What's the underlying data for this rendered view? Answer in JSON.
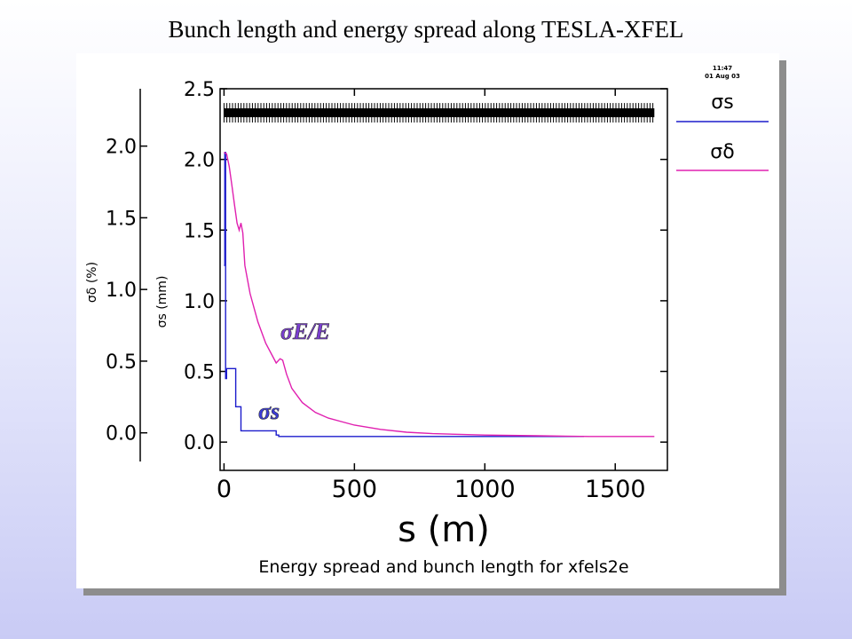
{
  "slide": {
    "title": "Bunch length and energy spread along TESLA-XFEL"
  },
  "plot": {
    "caption": "Energy spread and bunch length for xfels2e",
    "timestamp_time": "11:47",
    "timestamp_date": "01 Aug 03",
    "annotation_energy": "σE/E",
    "annotation_length": "σs"
  },
  "chart_data": {
    "type": "line",
    "title": "Energy spread and bunch length for xfels2e",
    "xlabel": "s (m)",
    "ylabel_left": "σδ (%)",
    "ylabel_right": "σs (mm)",
    "xlim": [
      -15,
      1700
    ],
    "ylim_sigma_s": [
      -0.2,
      2.5
    ],
    "ylim_sigma_delta": [
      -0.2,
      2.4
    ],
    "x_ticks": [
      0,
      500,
      1000,
      1500
    ],
    "x_tick_labels": [
      "0",
      "500",
      "1000",
      "1500"
    ],
    "y_ticks_sigma_s": [
      0.0,
      0.5,
      1.0,
      1.5,
      2.0,
      2.5
    ],
    "y_tick_labels_sigma_s": [
      "0.0",
      "0.5",
      "1.0",
      "1.5",
      "2.0",
      "2.5"
    ],
    "y_ticks_sigma_delta": [
      0.0,
      0.5,
      1.0,
      1.5,
      2.0
    ],
    "y_tick_labels_sigma_delta": [
      "0.0",
      "0.5",
      "1.0",
      "1.5",
      "2.0"
    ],
    "legend_position": "right",
    "lattice_band": {
      "y": 2.33,
      "x_start": 0,
      "x_end": 1650
    },
    "series": [
      {
        "name": "σs",
        "axis": "sigma_s",
        "color": "#1c1ccc",
        "x": [
          0,
          3,
          3,
          6,
          6,
          10,
          10,
          45,
          45,
          65,
          65,
          200,
          200,
          210,
          210,
          500,
          500,
          1380
        ],
        "y": [
          1.25,
          1.25,
          2.05,
          2.05,
          0.45,
          0.45,
          0.52,
          0.52,
          0.25,
          0.25,
          0.08,
          0.08,
          0.05,
          0.05,
          0.04,
          0.04,
          0.04,
          0.04
        ]
      },
      {
        "name": "σδ",
        "axis": "sigma_s",
        "color": "#e020b0",
        "x": [
          0,
          10,
          20,
          30,
          40,
          50,
          58,
          65,
          72,
          80,
          100,
          130,
          160,
          200,
          215,
          225,
          240,
          260,
          300,
          350,
          400,
          500,
          600,
          700,
          800,
          1000,
          1200,
          1400,
          1650
        ],
        "y": [
          2.05,
          2.04,
          1.95,
          1.82,
          1.68,
          1.55,
          1.5,
          1.55,
          1.48,
          1.25,
          1.05,
          0.85,
          0.7,
          0.56,
          0.59,
          0.58,
          0.48,
          0.38,
          0.28,
          0.21,
          0.17,
          0.12,
          0.09,
          0.07,
          0.06,
          0.05,
          0.045,
          0.04,
          0.04
        ]
      }
    ]
  }
}
